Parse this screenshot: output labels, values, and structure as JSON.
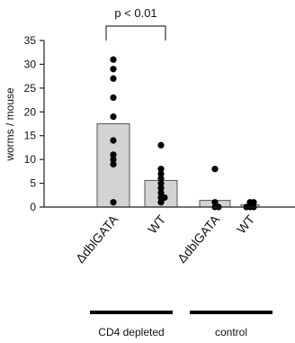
{
  "chart_data": {
    "type": "bar",
    "ylabel": "worms / mouse",
    "ylim": [
      0,
      35
    ],
    "yticks": [
      0,
      5,
      10,
      15,
      20,
      25,
      30,
      35
    ],
    "categories": [
      "ΔdblGATA",
      "WT",
      "ΔdblGATA",
      "WT"
    ],
    "values": [
      17.5,
      5.6,
      1.4,
      0.5
    ],
    "bar_fill": "#d3d3d3",
    "bar_stroke": "#555555",
    "points": [
      [
        31,
        29,
        27,
        23,
        19,
        14,
        11,
        10,
        9,
        1
      ],
      [
        13,
        8,
        7,
        6,
        5,
        4,
        3,
        2,
        2,
        1
      ],
      [
        8,
        1,
        0,
        0
      ],
      [
        1,
        1,
        0,
        0,
        0
      ]
    ],
    "groups": [
      {
        "label": "CD4 depleted",
        "categories": [
          0,
          1
        ]
      },
      {
        "label": "control",
        "categories": [
          2,
          3
        ]
      }
    ],
    "significance": {
      "label": "p < 0.01",
      "between": [
        0,
        1
      ]
    }
  }
}
